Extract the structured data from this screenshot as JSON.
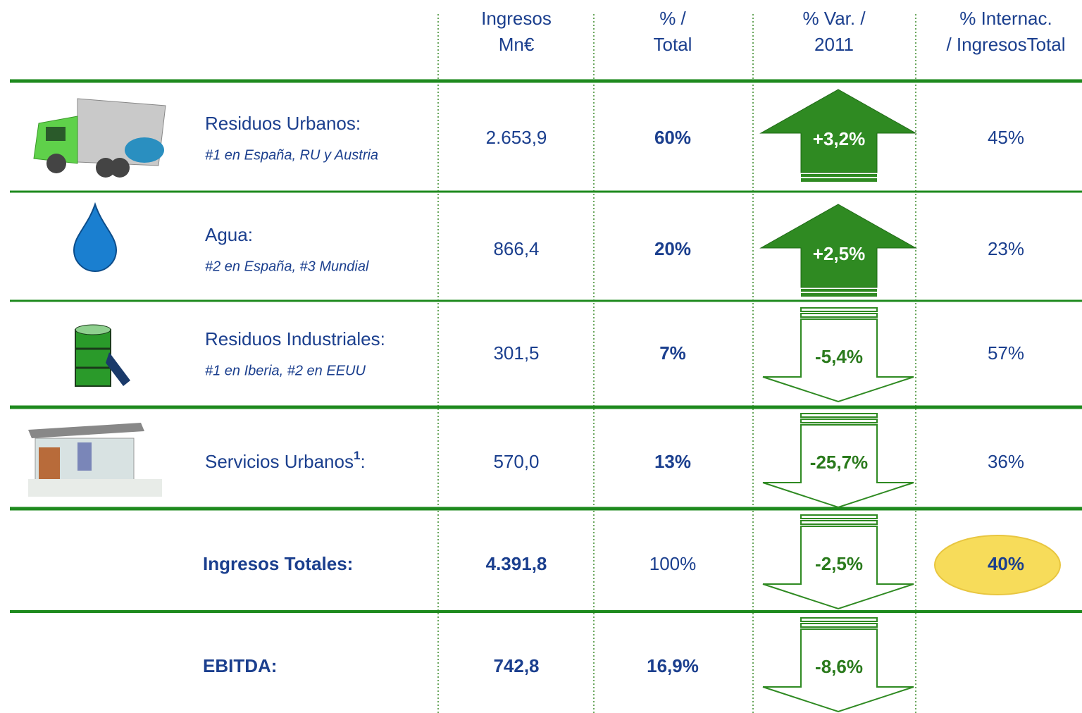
{
  "header": {
    "columns": [
      [
        "Ingresos",
        "Mn€"
      ],
      [
        "% /",
        "Total"
      ],
      [
        "% Var. /",
        "2011"
      ],
      [
        "% Internac.",
        "/ IngresosTotal"
      ]
    ]
  },
  "rows": [
    {
      "name": "Residuos Urbanos:",
      "subtitle": "#1 en España, RU  y Austria",
      "ingresos": "2.653,9",
      "share": "60%",
      "variation": "+3,2%",
      "international": "45%"
    },
    {
      "name": "Agua:",
      "subtitle": "#2 en España, #3 Mundial",
      "ingresos": "866,4",
      "share": "20%",
      "variation": "+2,5%",
      "international": "23%"
    },
    {
      "name": "Residuos Industriales:",
      "subtitle": "#1 en Iberia, #2  en  EEUU",
      "ingresos": "301,5",
      "share": "7%",
      "variation": "-5,4%",
      "international": "57%"
    },
    {
      "name": "Servicios Urbanos",
      "name_sup": "1",
      "name_suffix": ":",
      "ingresos": "570,0",
      "share": "13%",
      "variation": "-25,7%",
      "international": "36%"
    },
    {
      "name": "Ingresos Totales:",
      "ingresos": "4.391,8",
      "share": "100%",
      "variation": "-2,5%",
      "international": "40%"
    },
    {
      "name": "EBITDA:",
      "ingresos": "742,8",
      "share": "16,9%",
      "variation": "-8,6%"
    }
  ]
}
